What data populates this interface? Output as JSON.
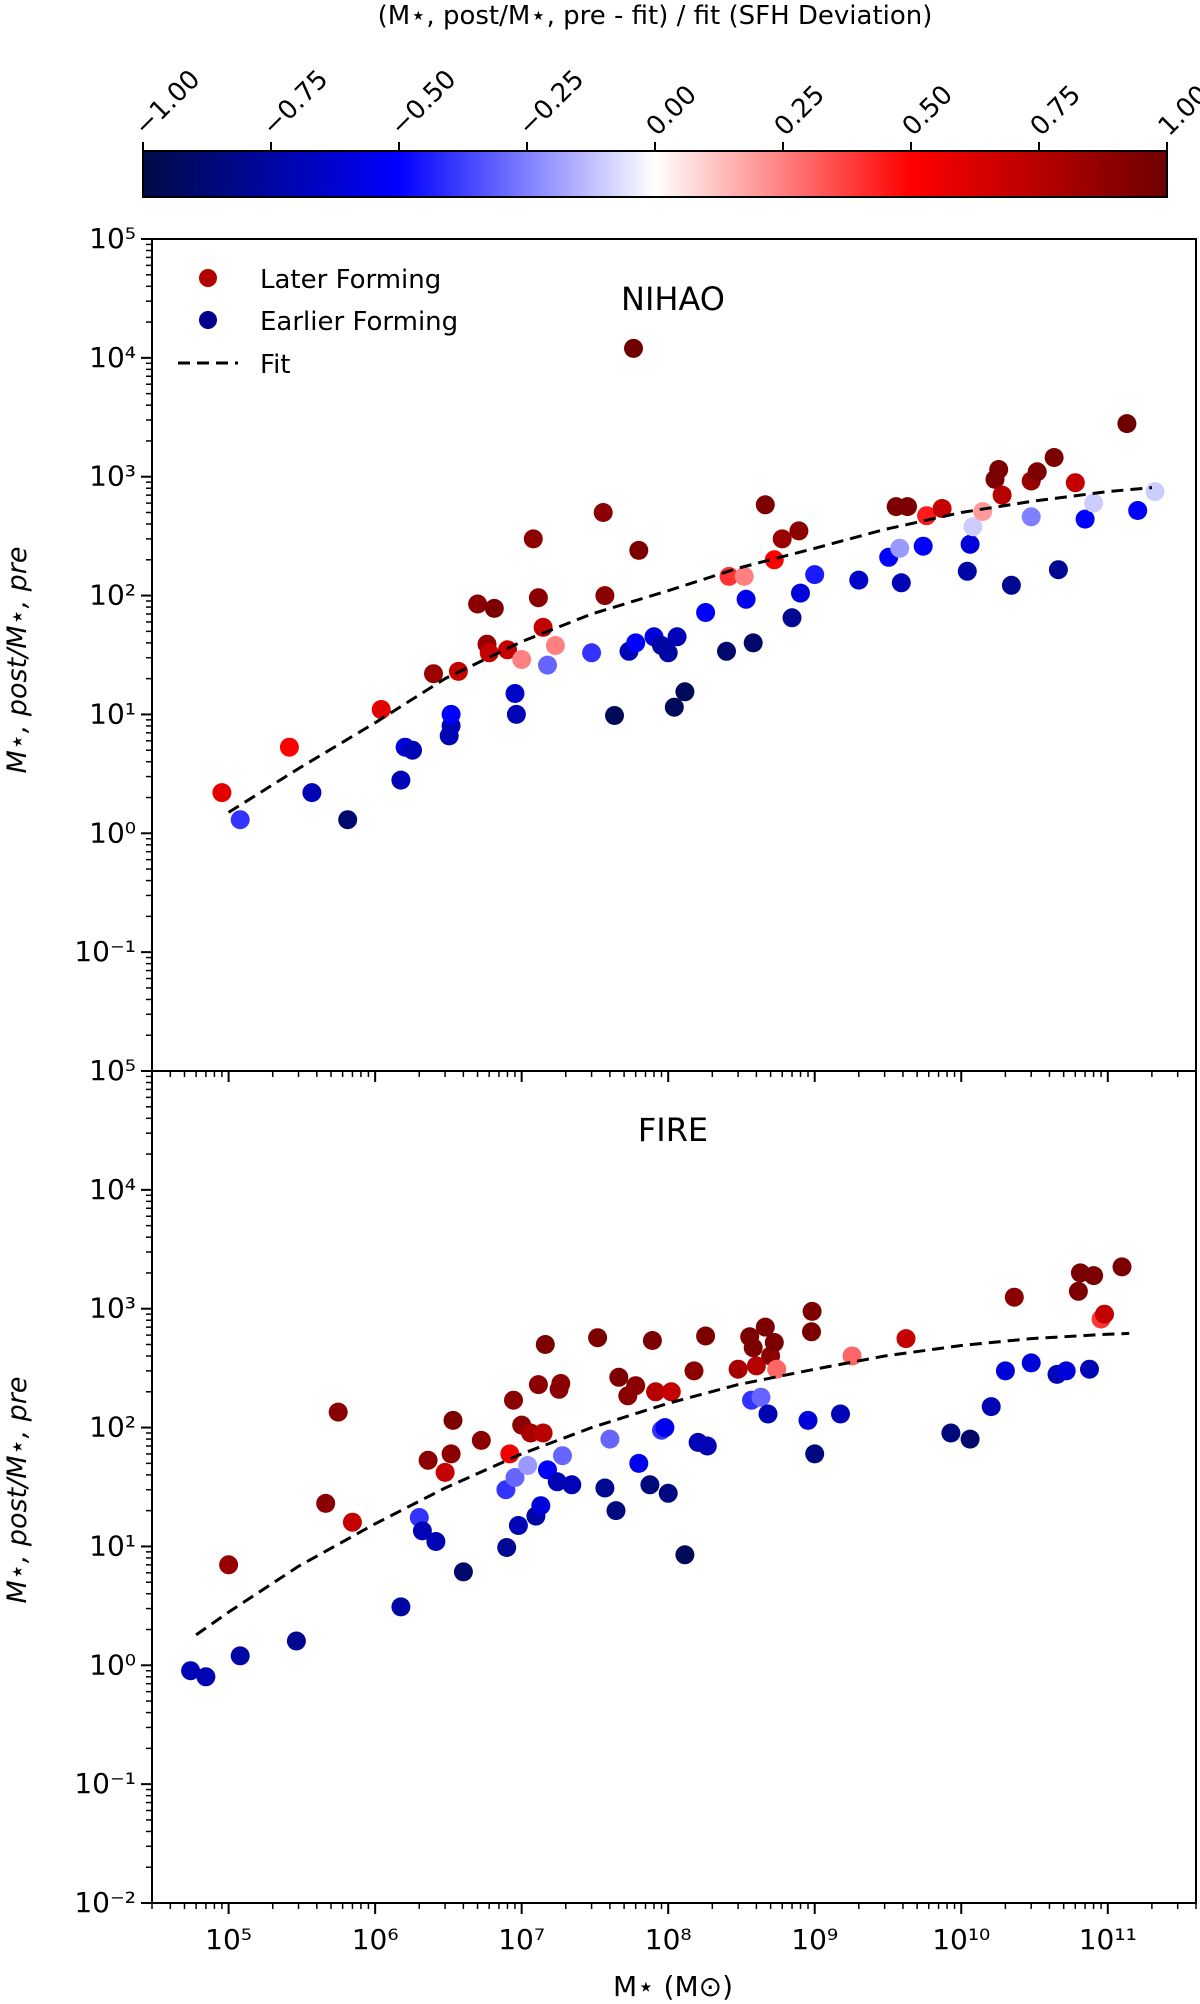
{
  "colorbar": {
    "label": "(M⋆, post/M⋆, pre - fit) / fit (SFH Deviation)",
    "ticks": [
      -1.0,
      -0.75,
      -0.5,
      -0.25,
      0.0,
      0.25,
      0.5,
      0.75,
      1.0
    ],
    "tick_labels": [
      "−1.00",
      "−0.75",
      "−0.50",
      "−0.25",
      "0.00",
      "0.25",
      "0.50",
      "0.75",
      "1.00"
    ],
    "range": [
      -1,
      1
    ],
    "colormap": "seismic",
    "colors": [
      "#000b46",
      "#0000ff",
      "#ffffff",
      "#ff0000",
      "#6e0000"
    ]
  },
  "legend": {
    "items": [
      {
        "label": "Later Forming",
        "color": "#b00000"
      },
      {
        "label": "Earlier Forming",
        "color": "#000090"
      },
      {
        "label": "Fit",
        "style": "dashed"
      }
    ]
  },
  "chart_data": [
    {
      "type": "scatter",
      "title": "NIHAO",
      "ylabel": "M⋆, post/M⋆, pre",
      "x_scale": "log",
      "y_scale": "log",
      "xlim": [
        30000.0,
        400000000000.0
      ],
      "ylim": [
        0.01,
        100000
      ],
      "y_ticks": [
        0.1,
        1,
        10,
        100,
        1000,
        10000,
        100000
      ],
      "y_tick_labels": [
        "10⁻¹",
        "10⁰",
        "10¹",
        "10²",
        "10³",
        "10⁴",
        "10⁵"
      ],
      "fit": [
        [
          100000.0,
          1.5
        ],
        [
          300000.0,
          3.5
        ],
        [
          1000000.0,
          8.5
        ],
        [
          3000000.0,
          20
        ],
        [
          10000000.0,
          41
        ],
        [
          30000000.0,
          70
        ],
        [
          100000000.0,
          110
        ],
        [
          300000000.0,
          170
        ],
        [
          1000000000.0,
          250
        ],
        [
          3000000000.0,
          360
        ],
        [
          10000000000.0,
          500
        ],
        [
          30000000000.0,
          620
        ],
        [
          100000000000.0,
          750
        ],
        [
          200000000000.0,
          810
        ]
      ],
      "points": [
        {
          "x": 90000.0,
          "y": 2.2,
          "c": 0.6
        },
        {
          "x": 120000.0,
          "y": 1.3,
          "c": -0.4
        },
        {
          "x": 260000.0,
          "y": 5.3,
          "c": 0.5
        },
        {
          "x": 370000.0,
          "y": 2.2,
          "c": -0.7
        },
        {
          "x": 650000.0,
          "y": 1.3,
          "c": -0.9
        },
        {
          "x": 1100000.0,
          "y": 11,
          "c": 0.6
        },
        {
          "x": 1500000.0,
          "y": 2.8,
          "c": -0.7
        },
        {
          "x": 1600000.0,
          "y": 5.3,
          "c": -0.6
        },
        {
          "x": 1800000.0,
          "y": 5.0,
          "c": -0.7
        },
        {
          "x": 2500000.0,
          "y": 22,
          "c": 0.85
        },
        {
          "x": 3200000.0,
          "y": 6.6,
          "c": -0.7
        },
        {
          "x": 3300000.0,
          "y": 8.0,
          "c": -0.7
        },
        {
          "x": 3300000.0,
          "y": 10,
          "c": -0.5
        },
        {
          "x": 3700000.0,
          "y": 23,
          "c": 0.7
        },
        {
          "x": 5000000.0,
          "y": 85,
          "c": 0.9
        },
        {
          "x": 5800000.0,
          "y": 39,
          "c": 0.85
        },
        {
          "x": 6000000.0,
          "y": 33,
          "c": 0.7
        },
        {
          "x": 6500000.0,
          "y": 78,
          "c": 0.95
        },
        {
          "x": 8000000.0,
          "y": 35,
          "c": 0.7
        },
        {
          "x": 9000000.0,
          "y": 15,
          "c": -0.65
        },
        {
          "x": 9200000.0,
          "y": 10,
          "c": -0.7
        },
        {
          "x": 10000000.0,
          "y": 29,
          "c": 0.25
        },
        {
          "x": 12000000.0,
          "y": 300,
          "c": 0.9
        },
        {
          "x": 13000000.0,
          "y": 96,
          "c": 0.9
        },
        {
          "x": 14000000.0,
          "y": 54,
          "c": 0.7
        },
        {
          "x": 15000000.0,
          "y": 26,
          "c": -0.3
        },
        {
          "x": 17000000.0,
          "y": 38,
          "c": 0.25
        },
        {
          "x": 30000000.0,
          "y": 33,
          "c": -0.4
        },
        {
          "x": 36000000.0,
          "y": 500,
          "c": 0.9
        },
        {
          "x": 37000000.0,
          "y": 100,
          "c": 0.9
        },
        {
          "x": 43000000.0,
          "y": 9.8,
          "c": -0.95
        },
        {
          "x": 54000000.0,
          "y": 34,
          "c": -0.7
        },
        {
          "x": 58000000.0,
          "y": 12000,
          "c": 1.0
        },
        {
          "x": 60000000.0,
          "y": 40,
          "c": -0.5
        },
        {
          "x": 63000000.0,
          "y": 240,
          "c": 0.95
        },
        {
          "x": 80000000.0,
          "y": 45,
          "c": -0.6
        },
        {
          "x": 90000000.0,
          "y": 38,
          "c": -0.75
        },
        {
          "x": 100000000.0,
          "y": 33,
          "c": -0.75
        },
        {
          "x": 110000000.0,
          "y": 11.5,
          "c": -0.95
        },
        {
          "x": 115000000.0,
          "y": 45,
          "c": -0.7
        },
        {
          "x": 130000000.0,
          "y": 15.5,
          "c": -0.95
        },
        {
          "x": 180000000.0,
          "y": 72,
          "c": -0.5
        },
        {
          "x": 250000000.0,
          "y": 34,
          "c": -0.9
        },
        {
          "x": 260000000.0,
          "y": 145,
          "c": 0.4
        },
        {
          "x": 330000000.0,
          "y": 145,
          "c": 0.25
        },
        {
          "x": 340000000.0,
          "y": 93,
          "c": -0.55
        },
        {
          "x": 380000000.0,
          "y": 40,
          "c": -0.9
        },
        {
          "x": 460000000.0,
          "y": 580,
          "c": 0.95
        },
        {
          "x": 530000000.0,
          "y": 200,
          "c": 0.5
        },
        {
          "x": 600000000.0,
          "y": 300,
          "c": 0.85
        },
        {
          "x": 700000000.0,
          "y": 65,
          "c": -0.8
        },
        {
          "x": 780000000.0,
          "y": 350,
          "c": 0.9
        },
        {
          "x": 800000000.0,
          "y": 105,
          "c": -0.6
        },
        {
          "x": 1000000000.0,
          "y": 150,
          "c": -0.45
        },
        {
          "x": 2000000000.0,
          "y": 135,
          "c": -0.65
        },
        {
          "x": 3200000000.0,
          "y": 210,
          "c": -0.5
        },
        {
          "x": 3600000000.0,
          "y": 560,
          "c": 0.95
        },
        {
          "x": 3800000000.0,
          "y": 250,
          "c": -0.2
        },
        {
          "x": 3900000000.0,
          "y": 128,
          "c": -0.7
        },
        {
          "x": 4300000000.0,
          "y": 560,
          "c": 0.95
        },
        {
          "x": 5500000000.0,
          "y": 260,
          "c": -0.5
        },
        {
          "x": 5800000000.0,
          "y": 470,
          "c": 0.45
        },
        {
          "x": 7400000000.0,
          "y": 540,
          "c": 0.7
        },
        {
          "x": 11000000000.0,
          "y": 160,
          "c": -0.75
        },
        {
          "x": 11500000000.0,
          "y": 270,
          "c": -0.6
        },
        {
          "x": 12000000000.0,
          "y": 380,
          "c": -0.1
        },
        {
          "x": 14000000000.0,
          "y": 510,
          "c": 0.2
        },
        {
          "x": 17000000000.0,
          "y": 950,
          "c": 0.95
        },
        {
          "x": 18000000000.0,
          "y": 1150,
          "c": 0.95
        },
        {
          "x": 19000000000.0,
          "y": 700,
          "c": 0.75
        },
        {
          "x": 22000000000.0,
          "y": 122,
          "c": -0.8
        },
        {
          "x": 30000000000.0,
          "y": 460,
          "c": -0.25
        },
        {
          "x": 30000000000.0,
          "y": 920,
          "c": 0.85
        },
        {
          "x": 33000000000.0,
          "y": 1100,
          "c": 0.95
        },
        {
          "x": 43000000000.0,
          "y": 1450,
          "c": 0.95
        },
        {
          "x": 46000000000.0,
          "y": 165,
          "c": -0.8
        },
        {
          "x": 60000000000.0,
          "y": 890,
          "c": 0.7
        },
        {
          "x": 70000000000.0,
          "y": 440,
          "c": -0.5
        },
        {
          "x": 80000000000.0,
          "y": 600,
          "c": -0.1
        },
        {
          "x": 135000000000.0,
          "y": 2800,
          "c": 1.0
        },
        {
          "x": 160000000000.0,
          "y": 520,
          "c": -0.5
        },
        {
          "x": 210000000000.0,
          "y": 750,
          "c": -0.1
        }
      ]
    },
    {
      "type": "scatter",
      "title": "FIRE",
      "xlabel": "M⋆ (M⊙)",
      "ylabel": "M⋆, post/M⋆, pre",
      "x_scale": "log",
      "y_scale": "log",
      "xlim": [
        30000.0,
        400000000000.0
      ],
      "ylim": [
        0.01,
        100000
      ],
      "x_ticks": [
        100000,
        1000000,
        10000000,
        100000000,
        1000000000,
        10000000000,
        100000000000
      ],
      "x_tick_labels": [
        "10⁵",
        "10⁶",
        "10⁷",
        "10⁸",
        "10⁹",
        "10¹⁰",
        "10¹¹"
      ],
      "y_ticks": [
        0.01,
        0.1,
        1,
        10,
        100,
        1000,
        10000,
        100000
      ],
      "y_tick_labels": [
        "10⁻²",
        "10⁻¹",
        "10⁰",
        "10¹",
        "10²",
        "10³",
        "10⁴",
        "10⁵"
      ],
      "fit": [
        [
          60000.0,
          1.8
        ],
        [
          100000.0,
          2.8
        ],
        [
          300000.0,
          6.8
        ],
        [
          1000000.0,
          15.5
        ],
        [
          3000000.0,
          31
        ],
        [
          10000000.0,
          60
        ],
        [
          30000000.0,
          100
        ],
        [
          100000000.0,
          160
        ],
        [
          300000000.0,
          230
        ],
        [
          1000000000.0,
          310
        ],
        [
          3000000000.0,
          400
        ],
        [
          10000000000.0,
          490
        ],
        [
          30000000000.0,
          560
        ],
        [
          100000000000.0,
          610
        ],
        [
          140000000000.0,
          620
        ]
      ],
      "points": [
        {
          "x": 55000.0,
          "y": 0.9,
          "c": -0.7
        },
        {
          "x": 70000.0,
          "y": 0.8,
          "c": -0.7
        },
        {
          "x": 100000.0,
          "y": 7.0,
          "c": 0.85
        },
        {
          "x": 120000.0,
          "y": 1.2,
          "c": -0.75
        },
        {
          "x": 290000.0,
          "y": 1.6,
          "c": -0.8
        },
        {
          "x": 460000.0,
          "y": 23,
          "c": 0.9
        },
        {
          "x": 560000.0,
          "y": 135,
          "c": 0.9
        },
        {
          "x": 700000.0,
          "y": 16,
          "c": 0.7
        },
        {
          "x": 1500000.0,
          "y": 3.1,
          "c": -0.75
        },
        {
          "x": 2000000.0,
          "y": 17.5,
          "c": -0.4
        },
        {
          "x": 2100000.0,
          "y": 13.5,
          "c": -0.7
        },
        {
          "x": 2300000.0,
          "y": 53,
          "c": 0.9
        },
        {
          "x": 2600000.0,
          "y": 11,
          "c": -0.7
        },
        {
          "x": 3000000.0,
          "y": 42,
          "c": 0.7
        },
        {
          "x": 3300000.0,
          "y": 60,
          "c": 0.9
        },
        {
          "x": 3400000.0,
          "y": 115,
          "c": 0.95
        },
        {
          "x": 4000000.0,
          "y": 6.1,
          "c": -0.9
        },
        {
          "x": 5300000.0,
          "y": 78,
          "c": 0.9
        },
        {
          "x": 7800000.0,
          "y": 30,
          "c": -0.4
        },
        {
          "x": 7900000.0,
          "y": 9.8,
          "c": -0.8
        },
        {
          "x": 8300000.0,
          "y": 60,
          "c": 0.55
        },
        {
          "x": 8800000.0,
          "y": 170,
          "c": 0.9
        },
        {
          "x": 9000000.0,
          "y": 38,
          "c": -0.3
        },
        {
          "x": 9500000.0,
          "y": 15,
          "c": -0.7
        },
        {
          "x": 10000000.0,
          "y": 105,
          "c": 0.9
        },
        {
          "x": 11000000.0,
          "y": 48,
          "c": -0.2
        },
        {
          "x": 11500000.0,
          "y": 90,
          "c": 0.8
        },
        {
          "x": 12500000.0,
          "y": 18,
          "c": -0.75
        },
        {
          "x": 13000000.0,
          "y": 230,
          "c": 0.9
        },
        {
          "x": 13500000.0,
          "y": 22,
          "c": -0.6
        },
        {
          "x": 14000000.0,
          "y": 90,
          "c": 0.75
        },
        {
          "x": 14500000.0,
          "y": 500,
          "c": 0.95
        },
        {
          "x": 15000000.0,
          "y": 44,
          "c": -0.5
        },
        {
          "x": 17500000.0,
          "y": 35,
          "c": -0.7
        },
        {
          "x": 18000000.0,
          "y": 210,
          "c": 0.9
        },
        {
          "x": 18500000.0,
          "y": 235,
          "c": 0.9
        },
        {
          "x": 19000000.0,
          "y": 58,
          "c": -0.3
        },
        {
          "x": 22000000.0,
          "y": 33,
          "c": -0.7
        },
        {
          "x": 33000000.0,
          "y": 570,
          "c": 0.95
        },
        {
          "x": 37000000.0,
          "y": 31,
          "c": -0.8
        },
        {
          "x": 40000000.0,
          "y": 80,
          "c": -0.3
        },
        {
          "x": 44000000.0,
          "y": 20,
          "c": -0.85
        },
        {
          "x": 46000000.0,
          "y": 265,
          "c": 0.95
        },
        {
          "x": 53000000.0,
          "y": 185,
          "c": 0.9
        },
        {
          "x": 60000000.0,
          "y": 225,
          "c": 0.9
        },
        {
          "x": 63000000.0,
          "y": 50,
          "c": -0.55
        },
        {
          "x": 75000000.0,
          "y": 33,
          "c": -0.85
        },
        {
          "x": 78000000.0,
          "y": 540,
          "c": 0.95
        },
        {
          "x": 82000000.0,
          "y": 200,
          "c": 0.75
        },
        {
          "x": 90000000.0,
          "y": 95,
          "c": -0.4
        },
        {
          "x": 95000000.0,
          "y": 100,
          "c": -0.55
        },
        {
          "x": 100000000.0,
          "y": 28,
          "c": -0.85
        },
        {
          "x": 105000000.0,
          "y": 200,
          "c": 0.7
        },
        {
          "x": 130000000.0,
          "y": 8.5,
          "c": -0.95
        },
        {
          "x": 150000000.0,
          "y": 300,
          "c": 0.9
        },
        {
          "x": 160000000.0,
          "y": 75,
          "c": -0.7
        },
        {
          "x": 180000000.0,
          "y": 590,
          "c": 0.95
        },
        {
          "x": 185000000.0,
          "y": 70,
          "c": -0.7
        },
        {
          "x": 300000000.0,
          "y": 310,
          "c": 0.8
        },
        {
          "x": 360000000.0,
          "y": 580,
          "c": 0.95
        },
        {
          "x": 370000000.0,
          "y": 170,
          "c": -0.4
        },
        {
          "x": 380000000.0,
          "y": 470,
          "c": 0.95
        },
        {
          "x": 400000000.0,
          "y": 330,
          "c": 0.75
        },
        {
          "x": 430000000.0,
          "y": 180,
          "c": -0.3
        },
        {
          "x": 460000000.0,
          "y": 700,
          "c": 0.95
        },
        {
          "x": 480000000.0,
          "y": 130,
          "c": -0.7
        },
        {
          "x": 500000000.0,
          "y": 400,
          "c": 0.9
        },
        {
          "x": 530000000.0,
          "y": 520,
          "c": 0.95
        },
        {
          "x": 550000000.0,
          "y": 310,
          "c": 0.3
        },
        {
          "x": 900000000.0,
          "y": 115,
          "c": -0.6
        },
        {
          "x": 950000000.0,
          "y": 640,
          "c": 0.95
        },
        {
          "x": 960000000.0,
          "y": 950,
          "c": 0.95
        },
        {
          "x": 1000000000.0,
          "y": 60,
          "c": -0.85
        },
        {
          "x": 1500000000.0,
          "y": 130,
          "c": -0.7
        },
        {
          "x": 1800000000.0,
          "y": 400,
          "c": 0.3
        },
        {
          "x": 4200000000.0,
          "y": 560,
          "c": 0.7
        },
        {
          "x": 8500000000.0,
          "y": 90,
          "c": -0.85
        },
        {
          "x": 11500000000.0,
          "y": 80,
          "c": -0.9
        },
        {
          "x": 16000000000.0,
          "y": 150,
          "c": -0.7
        },
        {
          "x": 20000000000.0,
          "y": 300,
          "c": -0.6
        },
        {
          "x": 23000000000.0,
          "y": 1250,
          "c": 0.9
        },
        {
          "x": 30000000000.0,
          "y": 350,
          "c": -0.6
        },
        {
          "x": 45000000000.0,
          "y": 280,
          "c": -0.7
        },
        {
          "x": 52000000000.0,
          "y": 300,
          "c": -0.6
        },
        {
          "x": 63000000000.0,
          "y": 1400,
          "c": 0.95
        },
        {
          "x": 65000000000.0,
          "y": 2000,
          "c": 0.95
        },
        {
          "x": 75000000000.0,
          "y": 310,
          "c": -0.7
        },
        {
          "x": 80000000000.0,
          "y": 1900,
          "c": 0.95
        },
        {
          "x": 90000000000.0,
          "y": 820,
          "c": 0.4
        },
        {
          "x": 95000000000.0,
          "y": 900,
          "c": 0.7
        },
        {
          "x": 125000000000.0,
          "y": 2250,
          "c": 0.95
        }
      ]
    }
  ]
}
